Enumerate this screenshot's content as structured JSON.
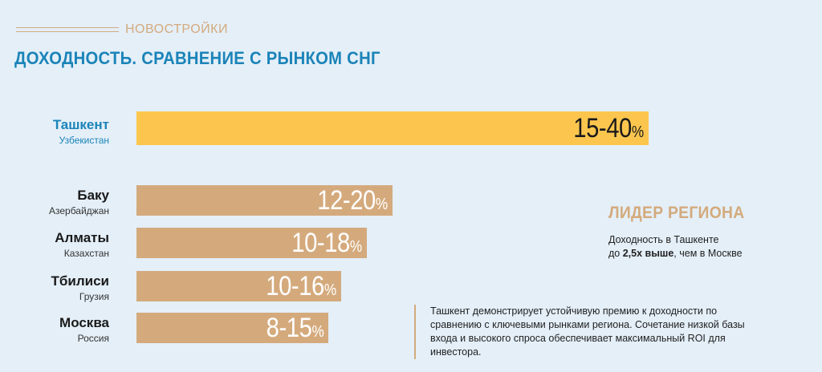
{
  "header": {
    "eyebrow": "НОВОСТРОЙКИ",
    "title": "ДОХОДНОСТЬ. СРАВНЕНИЕ С РЫНКОМ СНГ"
  },
  "colors": {
    "leader_bar": "#fcc64e",
    "other_bar": "#d4aa7d",
    "title": "#1b84b8",
    "background": "#e4eff8"
  },
  "chart_data": {
    "type": "bar",
    "orientation": "horizontal",
    "categories": [
      "Ташкент",
      "Баку",
      "Алматы",
      "Тбилиси",
      "Москва"
    ],
    "subcategories": [
      "Узбекистан",
      "Азербайджан",
      "Казахстан",
      "Грузия",
      "Россия"
    ],
    "ranges": [
      [
        15,
        40
      ],
      [
        12,
        20
      ],
      [
        10,
        18
      ],
      [
        10,
        16
      ],
      [
        8,
        15
      ]
    ],
    "labels": [
      "15-40",
      "12-20",
      "10-18",
      "10-16",
      "8-15"
    ],
    "unit": "%",
    "grid": false,
    "legend": "none",
    "title": "ДОХОДНОСТЬ. СРАВНЕНИЕ С РЫНКОМ СНГ"
  },
  "leader": {
    "title": "ЛИДЕР РЕГИОНА",
    "line1": "Доходность в Ташкенте",
    "line2_prefix": "до",
    "line2_bold": "2,5х выше",
    "line2_suffix": ", чем в Москве"
  },
  "note": {
    "text": "Ташкент демонстрирует устойчивую премию к доходности по сравнению с ключевыми рынками региона. Сочетание низкой базы входа и высокого спроса обеспечивает максимальный ROI для инвестора."
  }
}
